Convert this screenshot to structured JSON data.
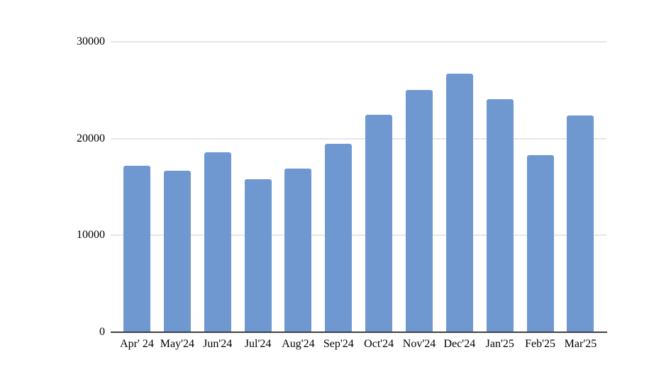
{
  "chart_data": {
    "type": "bar",
    "title": "",
    "xlabel": "",
    "ylabel": "",
    "categories": [
      "Apr' 24",
      "May'24",
      "Jun'24",
      "Jul'24",
      "Aug'24",
      "Sep'24",
      "Oct'24",
      "Nov'24",
      "Dec'24",
      "Jan'25",
      "Feb'25",
      "Mar'25"
    ],
    "values": [
      17200,
      16700,
      18600,
      15800,
      16900,
      19500,
      22500,
      25000,
      26700,
      24100,
      18300,
      22400
    ],
    "ylim": [
      0,
      30000
    ],
    "yticks": [
      0,
      10000,
      20000,
      30000
    ],
    "ytick_labels": [
      "0",
      "10000",
      "20000",
      "30000"
    ],
    "grid": true,
    "legend": false,
    "colors": {
      "bar_fill": "#6f98d1",
      "gridline": "#e7e7e7",
      "axis_line": "#3f3f3f",
      "tick_label": "#000000",
      "background": "#ffffff"
    }
  }
}
